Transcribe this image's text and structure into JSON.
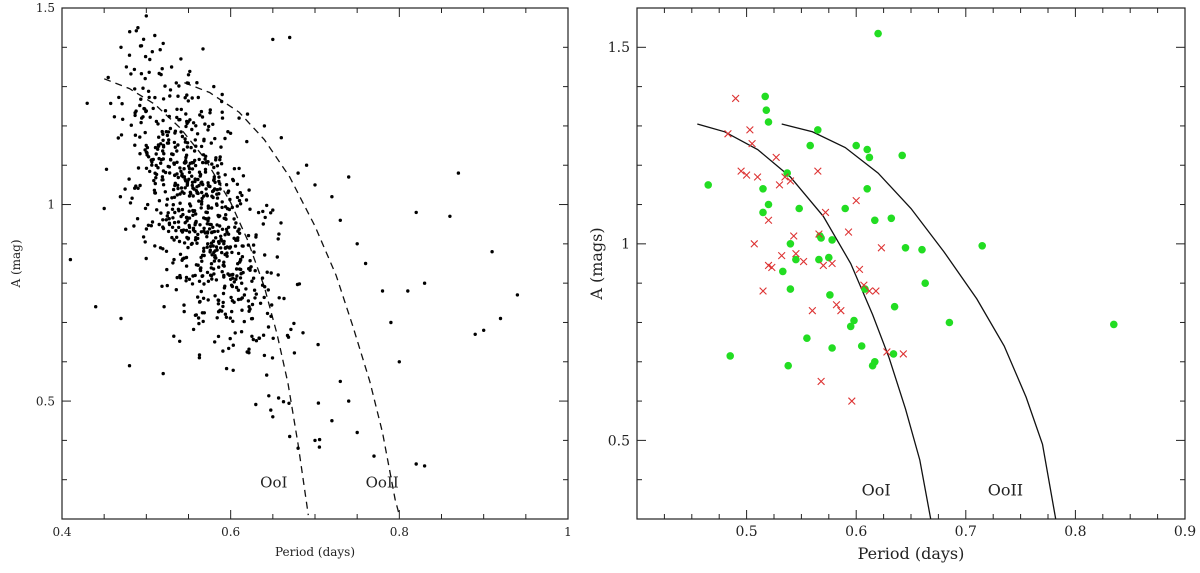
{
  "chart_data": [
    {
      "type": "scatter",
      "xlabel": "Period (days)",
      "ylabel": "A (mag)",
      "xlim": [
        0.4,
        1.0
      ],
      "ylim": [
        0.2,
        1.5
      ],
      "x_ticks": [
        0.4,
        0.6,
        0.8,
        1.0
      ],
      "x_tick_labels": [
        "0.4",
        "0.6",
        "0.8",
        "1"
      ],
      "y_ticks": [
        0.5,
        1.0,
        1.5
      ],
      "y_tick_labels": [
        "0.5",
        "1",
        "1.5"
      ],
      "grid": false,
      "marker_color": "#000000",
      "curves": [
        {
          "label": "OoI",
          "style": "dashed",
          "points": [
            [
              0.45,
              1.32
            ],
            [
              0.48,
              1.295
            ],
            [
              0.51,
              1.255
            ],
            [
              0.54,
              1.195
            ],
            [
              0.57,
              1.115
            ],
            [
              0.6,
              1.005
            ],
            [
              0.62,
              0.91
            ],
            [
              0.64,
              0.79
            ],
            [
              0.655,
              0.67
            ],
            [
              0.668,
              0.545
            ],
            [
              0.68,
              0.39
            ],
            [
              0.692,
              0.21
            ]
          ],
          "label_at": [
            0.635,
            0.28
          ]
        },
        {
          "label": "OoII",
          "style": "dashed",
          "points": [
            [
              0.545,
              1.31
            ],
            [
              0.575,
              1.285
            ],
            [
              0.61,
              1.235
            ],
            [
              0.64,
              1.165
            ],
            [
              0.67,
              1.07
            ],
            [
              0.7,
              0.945
            ],
            [
              0.725,
              0.82
            ],
            [
              0.745,
              0.69
            ],
            [
              0.765,
              0.55
            ],
            [
              0.78,
              0.42
            ],
            [
              0.795,
              0.25
            ],
            [
              0.8,
              0.21
            ]
          ],
          "label_at": [
            0.76,
            0.28
          ]
        }
      ],
      "random_points": {
        "n": 760,
        "seed": 7,
        "x_center": 0.565,
        "x_sd": 0.045,
        "y_base": 2.5,
        "y_slope": -2.7,
        "y_sd": 0.14
      },
      "points": [
        [
          0.41,
          0.86
        ],
        [
          0.44,
          0.74
        ],
        [
          0.45,
          0.99
        ],
        [
          0.47,
          0.71
        ],
        [
          0.48,
          0.59
        ],
        [
          0.52,
          0.57
        ],
        [
          0.47,
          1.4
        ],
        [
          0.48,
          1.38
        ],
        [
          0.49,
          1.45
        ],
        [
          0.5,
          1.48
        ],
        [
          0.51,
          1.43
        ],
        [
          0.52,
          1.41
        ],
        [
          0.53,
          1.35
        ],
        [
          0.55,
          1.33
        ],
        [
          0.56,
          1.31
        ],
        [
          0.58,
          1.3
        ],
        [
          0.59,
          1.28
        ],
        [
          0.61,
          1.22
        ],
        [
          0.62,
          1.23
        ],
        [
          0.64,
          1.2
        ],
        [
          0.65,
          1.42
        ],
        [
          0.67,
          1.425
        ],
        [
          0.66,
          1.17
        ],
        [
          0.68,
          1.08
        ],
        [
          0.69,
          1.1
        ],
        [
          0.7,
          1.05
        ],
        [
          0.72,
          1.02
        ],
        [
          0.73,
          0.96
        ],
        [
          0.74,
          1.07
        ],
        [
          0.75,
          0.9
        ],
        [
          0.76,
          0.85
        ],
        [
          0.78,
          0.78
        ],
        [
          0.79,
          0.7
        ],
        [
          0.8,
          0.6
        ],
        [
          0.81,
          0.78
        ],
        [
          0.82,
          0.98
        ],
        [
          0.83,
          0.8
        ],
        [
          0.86,
          0.97
        ],
        [
          0.87,
          1.08
        ],
        [
          0.89,
          0.67
        ],
        [
          0.9,
          0.68
        ],
        [
          0.91,
          0.88
        ],
        [
          0.92,
          0.71
        ],
        [
          0.94,
          0.77
        ],
        [
          0.65,
          0.46
        ],
        [
          0.67,
          0.41
        ],
        [
          0.68,
          0.38
        ],
        [
          0.72,
          0.45
        ],
        [
          0.75,
          0.42
        ],
        [
          0.77,
          0.36
        ],
        [
          0.82,
          0.34
        ],
        [
          0.83,
          0.335
        ],
        [
          0.7,
          0.4
        ],
        [
          0.74,
          0.5
        ],
        [
          0.73,
          0.55
        ]
      ]
    },
    {
      "type": "scatter",
      "xlabel": "Period (days)",
      "ylabel": "A (mags)",
      "xlim": [
        0.4,
        0.9
      ],
      "ylim": [
        0.3,
        1.6
      ],
      "x_ticks": [
        0.5,
        0.6,
        0.7,
        0.8,
        0.9
      ],
      "x_tick_labels": [
        "0.5",
        "0.6",
        "0.7",
        "0.8",
        "0.9"
      ],
      "y_ticks": [
        0.5,
        1.0,
        1.5
      ],
      "y_tick_labels": [
        "0.5",
        "1",
        "1.5"
      ],
      "grid": false,
      "curves": [
        {
          "label": "OoI",
          "style": "solid",
          "points": [
            [
              0.455,
              1.305
            ],
            [
              0.48,
              1.285
            ],
            [
              0.51,
              1.24
            ],
            [
              0.54,
              1.17
            ],
            [
              0.57,
              1.07
            ],
            [
              0.595,
              0.95
            ],
            [
              0.615,
              0.82
            ],
            [
              0.63,
              0.71
            ],
            [
              0.645,
              0.58
            ],
            [
              0.658,
              0.45
            ],
            [
              0.668,
              0.3
            ]
          ],
          "label_at": [
            0.605,
            0.36
          ]
        },
        {
          "label": "OoII",
          "style": "solid",
          "points": [
            [
              0.532,
              1.305
            ],
            [
              0.56,
              1.285
            ],
            [
              0.59,
              1.245
            ],
            [
              0.62,
              1.18
            ],
            [
              0.65,
              1.09
            ],
            [
              0.68,
              0.98
            ],
            [
              0.71,
              0.86
            ],
            [
              0.735,
              0.74
            ],
            [
              0.755,
              0.61
            ],
            [
              0.77,
              0.49
            ],
            [
              0.782,
              0.3
            ]
          ],
          "label_at": [
            0.72,
            0.36
          ]
        }
      ],
      "series": [
        {
          "marker": "circle",
          "color": "#22dd22",
          "points": [
            [
              0.465,
              1.15
            ],
            [
              0.485,
              0.715
            ],
            [
              0.517,
              1.375
            ],
            [
              0.518,
              1.34
            ],
            [
              0.52,
              1.31
            ],
            [
              0.515,
              1.14
            ],
            [
              0.52,
              1.1
            ],
            [
              0.515,
              1.08
            ],
            [
              0.533,
              0.93
            ],
            [
              0.537,
              1.18
            ],
            [
              0.54,
              1.0
            ],
            [
              0.54,
              0.885
            ],
            [
              0.538,
              0.69
            ],
            [
              0.545,
              0.96
            ],
            [
              0.548,
              1.09
            ],
            [
              0.555,
              0.76
            ],
            [
              0.558,
              1.25
            ],
            [
              0.565,
              1.29
            ],
            [
              0.566,
              0.96
            ],
            [
              0.567,
              1.02
            ],
            [
              0.568,
              1.015
            ],
            [
              0.575,
              0.965
            ],
            [
              0.576,
              0.87
            ],
            [
              0.578,
              1.01
            ],
            [
              0.578,
              0.735
            ],
            [
              0.59,
              1.09
            ],
            [
              0.595,
              0.79
            ],
            [
              0.598,
              0.805
            ],
            [
              0.6,
              1.25
            ],
            [
              0.605,
              0.74
            ],
            [
              0.608,
              0.885
            ],
            [
              0.61,
              1.14
            ],
            [
              0.61,
              1.24
            ],
            [
              0.612,
              1.22
            ],
            [
              0.615,
              0.69
            ],
            [
              0.617,
              0.7
            ],
            [
              0.617,
              1.06
            ],
            [
              0.62,
              1.535
            ],
            [
              0.632,
              1.065
            ],
            [
              0.634,
              0.72
            ],
            [
              0.635,
              0.84
            ],
            [
              0.642,
              1.225
            ],
            [
              0.645,
              0.99
            ],
            [
              0.66,
              0.985
            ],
            [
              0.663,
              0.9
            ],
            [
              0.685,
              0.8
            ],
            [
              0.715,
              0.995
            ],
            [
              0.835,
              0.795
            ]
          ]
        },
        {
          "marker": "x",
          "color": "#dd3333",
          "points": [
            [
              0.483,
              1.28
            ],
            [
              0.49,
              1.37
            ],
            [
              0.495,
              1.185
            ],
            [
              0.5,
              1.175
            ],
            [
              0.503,
              1.29
            ],
            [
              0.505,
              1.255
            ],
            [
              0.507,
              1.0
            ],
            [
              0.51,
              1.17
            ],
            [
              0.515,
              0.88
            ],
            [
              0.52,
              0.945
            ],
            [
              0.52,
              1.06
            ],
            [
              0.523,
              0.94
            ],
            [
              0.527,
              1.22
            ],
            [
              0.53,
              1.15
            ],
            [
              0.532,
              0.97
            ],
            [
              0.535,
              1.17
            ],
            [
              0.54,
              1.16
            ],
            [
              0.543,
              1.02
            ],
            [
              0.545,
              0.975
            ],
            [
              0.552,
              0.955
            ],
            [
              0.56,
              0.83
            ],
            [
              0.565,
              1.185
            ],
            [
              0.566,
              1.025
            ],
            [
              0.568,
              0.65
            ],
            [
              0.57,
              0.945
            ],
            [
              0.572,
              1.08
            ],
            [
              0.578,
              0.95
            ],
            [
              0.582,
              0.845
            ],
            [
              0.586,
              0.83
            ],
            [
              0.593,
              1.03
            ],
            [
              0.596,
              0.6
            ],
            [
              0.6,
              1.11
            ],
            [
              0.603,
              0.935
            ],
            [
              0.607,
              0.895
            ],
            [
              0.612,
              0.88
            ],
            [
              0.618,
              0.88
            ],
            [
              0.623,
              0.99
            ],
            [
              0.628,
              0.725
            ],
            [
              0.643,
              0.72
            ]
          ]
        }
      ]
    }
  ]
}
